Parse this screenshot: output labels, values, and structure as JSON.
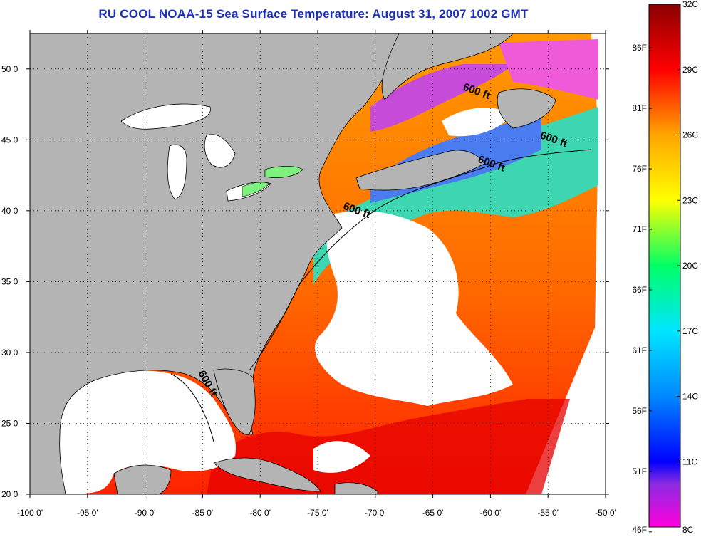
{
  "title": "RU COOL  NOAA-15  Sea Surface Temperature:  August 31, 2007 1002 GMT",
  "map": {
    "lon_range": [
      -100,
      -50
    ],
    "lat_range": [
      20,
      52.5
    ],
    "x_ticks": [
      "-100 0'",
      "-95 0'",
      "-90 0'",
      "-85 0'",
      "-80 0'",
      "-75 0'",
      "-70 0'",
      "-65 0'",
      "-60 0'",
      "-55 0'",
      "-50 0'"
    ],
    "x_tick_values": [
      -100,
      -95,
      -90,
      -85,
      -80,
      -75,
      -70,
      -65,
      -60,
      -55,
      -50
    ],
    "y_ticks": [
      "50 0'",
      "45 0'",
      "40 0'",
      "35 0'",
      "30 0'",
      "25 0'",
      "20 0'"
    ],
    "y_tick_values": [
      50,
      45,
      40,
      35,
      30,
      25,
      20
    ],
    "grid": "dotted",
    "land_color": "#b4b4b4",
    "cloud_color": "#ffffff",
    "contours": [
      {
        "label": "600 ft",
        "lon": -61.3,
        "lat": 48.2
      },
      {
        "label": "600 ft",
        "lon": -54.6,
        "lat": 44.8
      },
      {
        "label": "600 ft",
        "lon": -60.0,
        "lat": 43.1
      },
      {
        "label": "600 ft",
        "lon": -71.7,
        "lat": 39.8
      },
      {
        "label": "600 ft",
        "lon": -84.8,
        "lat": 27.7
      }
    ]
  },
  "colorbar": {
    "right_labels": [
      "32C",
      "29C",
      "26C",
      "23C",
      "20C",
      "17C",
      "14C",
      "11C",
      "8C"
    ],
    "right_values": [
      32,
      29,
      26,
      23,
      20,
      17,
      14,
      11,
      8
    ],
    "left_labels": [
      "86F",
      "81F",
      "76F",
      "71F",
      "66F",
      "61F",
      "56F",
      "51F",
      "46F"
    ],
    "left_values": [
      86,
      81,
      76,
      71,
      66,
      61,
      56,
      51,
      46
    ],
    "range_c": [
      8,
      32
    ],
    "stops": [
      {
        "c": 8,
        "color": "#ff00dd"
      },
      {
        "c": 10,
        "color": "#8a2be2"
      },
      {
        "c": 11,
        "color": "#0000ff"
      },
      {
        "c": 14,
        "color": "#0088ff"
      },
      {
        "c": 17,
        "color": "#00e6ff"
      },
      {
        "c": 20,
        "color": "#00ff66"
      },
      {
        "c": 23,
        "color": "#ffff00"
      },
      {
        "c": 26,
        "color": "#ffa500"
      },
      {
        "c": 29,
        "color": "#ff0000"
      },
      {
        "c": 32,
        "color": "#8b0000"
      }
    ]
  }
}
